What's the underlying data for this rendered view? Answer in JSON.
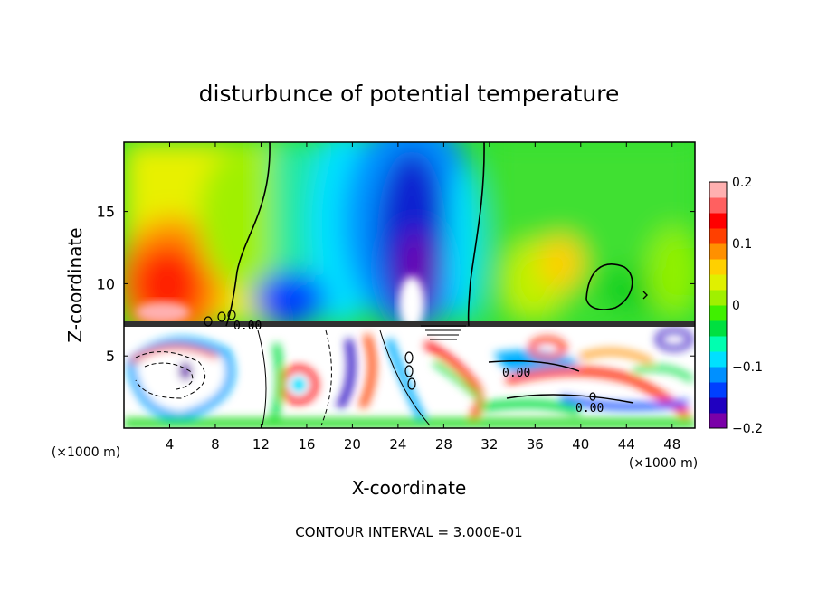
{
  "chart_data": {
    "type": "heatmap",
    "title": "disturbunce of potential temperature",
    "xlabel": "X-coordinate",
    "ylabel": "Z-coordinate",
    "x_unit": "(×1000 m)",
    "y_unit": "(×1000 m)",
    "xlim": [
      0,
      50
    ],
    "ylim": [
      0,
      19.8
    ],
    "x_ticks": [
      "4",
      "8",
      "12",
      "16",
      "20",
      "24",
      "28",
      "32",
      "36",
      "40",
      "44",
      "48"
    ],
    "y_ticks": [
      "5",
      "10",
      "15"
    ],
    "colorbar": {
      "range": [
        -0.2,
        0.2
      ],
      "tick_labels": [
        "0.2",
        "0.1",
        "0",
        "−0.1",
        "−0.2"
      ],
      "colors": [
        "#7a00a8",
        "#2000c0",
        "#0040ff",
        "#0090ff",
        "#00e0ff",
        "#00ffb0",
        "#00e040",
        "#40f000",
        "#a0f000",
        "#e0f000",
        "#ffd000",
        "#ff9000",
        "#ff4000",
        "#ff0000",
        "#ff6060",
        "#ffb0b0"
      ]
    },
    "contour_labels": [
      "0.00",
      "0.00",
      "0.00"
    ],
    "footer": "CONTOUR INTERVAL = 3.000E-01"
  }
}
